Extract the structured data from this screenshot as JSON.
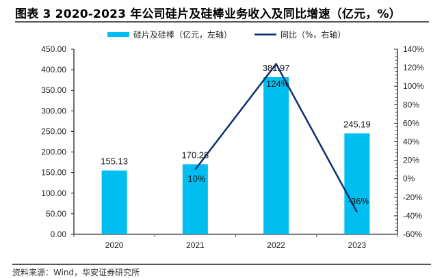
{
  "title": "图表 3 2020-2023 年公司硅片及硅棒业务收入及同比增速（亿元，%）",
  "source": "资料来源：Wind，华安证券研究所",
  "colors": {
    "bar": "#00BFF0",
    "line": "#0D2D6E",
    "axis": "#333333"
  },
  "chart_data": {
    "type": "bar",
    "title": "2020-2023 年公司硅片及硅棒业务收入及同比增速（亿元，%）",
    "categories": [
      "2020",
      "2021",
      "2022",
      "2023"
    ],
    "series": [
      {
        "name": "硅片及硅棒（亿元，左轴）",
        "type": "bar",
        "axis": "left",
        "values": [
          155.13,
          170.28,
          381.97,
          245.19
        ],
        "labels": [
          "155.13",
          "170.28",
          "381.97",
          "245.19"
        ]
      },
      {
        "name": "同比（%，右轴）",
        "type": "line",
        "axis": "right",
        "values": [
          null,
          10,
          124,
          -36
        ],
        "labels": [
          "",
          "10%",
          "124%",
          "-36%"
        ]
      }
    ],
    "y_left": {
      "min": 0,
      "max": 450,
      "step": 50,
      "ticks": [
        "0.00",
        "50.00",
        "100.00",
        "150.00",
        "200.00",
        "250.00",
        "300.00",
        "350.00",
        "400.00",
        "450.00"
      ]
    },
    "y_right": {
      "min": -60,
      "max": 140,
      "step": 20,
      "ticks": [
        "-60%",
        "-40%",
        "-20%",
        "0%",
        "20%",
        "40%",
        "60%",
        "80%",
        "100%",
        "120%",
        "140%"
      ]
    },
    "legend": [
      "硅片及硅棒（亿元，左轴）",
      "同比（%，右轴）"
    ],
    "legend_position": "top-center",
    "grid": false
  }
}
